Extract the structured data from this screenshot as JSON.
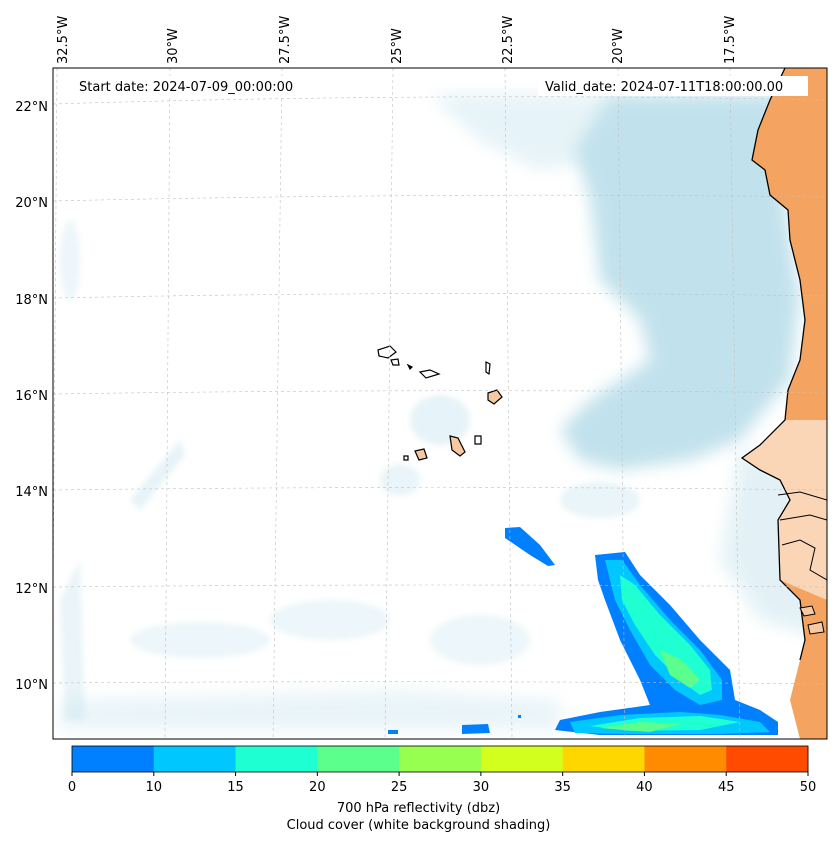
{
  "header": {
    "start_date": "Start date: 2024-07-09_00:00:00",
    "valid_date": "Valid_date: 2024-07-11T18:00:00.00"
  },
  "lon_labels": [
    "32.5°W",
    "30°W",
    "27.5°W",
    "25°W",
    "22.5°W",
    "20°W",
    "17.5°W"
  ],
  "lat_labels": [
    "22°N",
    "20°N",
    "18°N",
    "16°N",
    "14°N",
    "12°N",
    "10°N"
  ],
  "colorbar": {
    "ticks": [
      "0",
      "10",
      "15",
      "20",
      "25",
      "30",
      "35",
      "40",
      "45",
      "50"
    ],
    "colors": [
      "#0080ff",
      "#00c8ff",
      "#1effd2",
      "#5aff8c",
      "#96ff50",
      "#d2ff1e",
      "#ffd700",
      "#ff8c00",
      "#ff4b00"
    ],
    "label_line1": "700 hPa reflectivity (dbz)",
    "label_line2": "Cloud cover (white background shading)"
  },
  "colors": {
    "land": "#f4a460",
    "cloud": "#add8e6",
    "coast": "#000000"
  }
}
